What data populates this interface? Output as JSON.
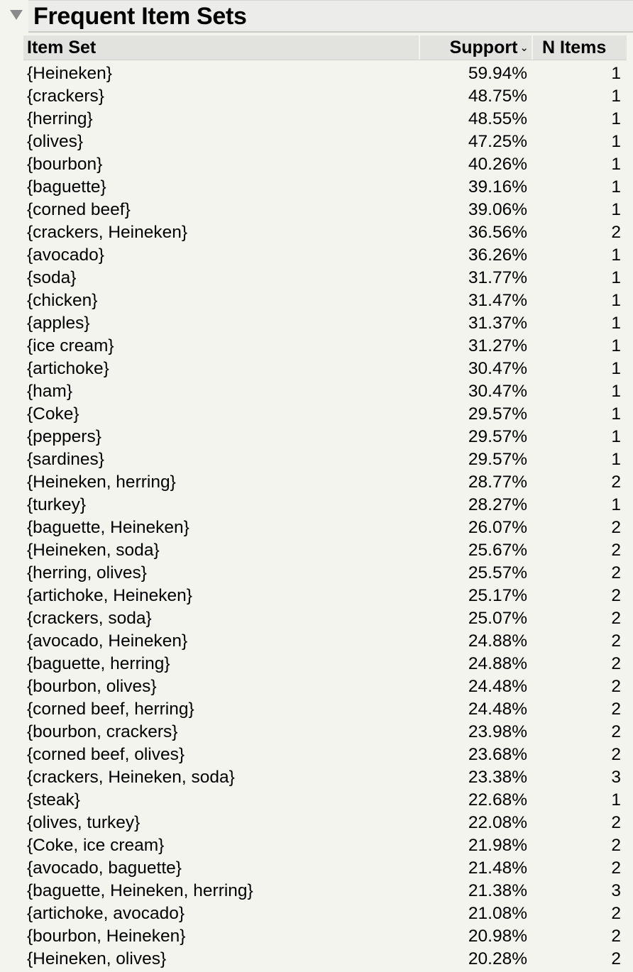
{
  "report": {
    "title": "Frequent Item Sets"
  },
  "table": {
    "columns": {
      "item_set": "Item Set",
      "support": "Support",
      "n_items": "N Items"
    },
    "sort": {
      "column": "support",
      "direction": "descending",
      "icon": "chevron-down-icon"
    },
    "rows": [
      {
        "item_set": "{Heineken}",
        "support": "59.94%",
        "n_items": "1"
      },
      {
        "item_set": "{crackers}",
        "support": "48.75%",
        "n_items": "1"
      },
      {
        "item_set": "{herring}",
        "support": "48.55%",
        "n_items": "1"
      },
      {
        "item_set": "{olives}",
        "support": "47.25%",
        "n_items": "1"
      },
      {
        "item_set": "{bourbon}",
        "support": "40.26%",
        "n_items": "1"
      },
      {
        "item_set": "{baguette}",
        "support": "39.16%",
        "n_items": "1"
      },
      {
        "item_set": "{corned beef}",
        "support": "39.06%",
        "n_items": "1"
      },
      {
        "item_set": "{crackers, Heineken}",
        "support": "36.56%",
        "n_items": "2"
      },
      {
        "item_set": "{avocado}",
        "support": "36.26%",
        "n_items": "1"
      },
      {
        "item_set": "{soda}",
        "support": "31.77%",
        "n_items": "1"
      },
      {
        "item_set": "{chicken}",
        "support": "31.47%",
        "n_items": "1"
      },
      {
        "item_set": "{apples}",
        "support": "31.37%",
        "n_items": "1"
      },
      {
        "item_set": "{ice cream}",
        "support": "31.27%",
        "n_items": "1"
      },
      {
        "item_set": "{artichoke}",
        "support": "30.47%",
        "n_items": "1"
      },
      {
        "item_set": "{ham}",
        "support": "30.47%",
        "n_items": "1"
      },
      {
        "item_set": "{Coke}",
        "support": "29.57%",
        "n_items": "1"
      },
      {
        "item_set": "{peppers}",
        "support": "29.57%",
        "n_items": "1"
      },
      {
        "item_set": "{sardines}",
        "support": "29.57%",
        "n_items": "1"
      },
      {
        "item_set": "{Heineken, herring}",
        "support": "28.77%",
        "n_items": "2"
      },
      {
        "item_set": "{turkey}",
        "support": "28.27%",
        "n_items": "1"
      },
      {
        "item_set": "{baguette, Heineken}",
        "support": "26.07%",
        "n_items": "2"
      },
      {
        "item_set": "{Heineken, soda}",
        "support": "25.67%",
        "n_items": "2"
      },
      {
        "item_set": "{herring, olives}",
        "support": "25.57%",
        "n_items": "2"
      },
      {
        "item_set": "{artichoke, Heineken}",
        "support": "25.17%",
        "n_items": "2"
      },
      {
        "item_set": "{crackers, soda}",
        "support": "25.07%",
        "n_items": "2"
      },
      {
        "item_set": "{avocado, Heineken}",
        "support": "24.88%",
        "n_items": "2"
      },
      {
        "item_set": "{baguette, herring}",
        "support": "24.88%",
        "n_items": "2"
      },
      {
        "item_set": "{bourbon, olives}",
        "support": "24.48%",
        "n_items": "2"
      },
      {
        "item_set": "{corned beef, herring}",
        "support": "24.48%",
        "n_items": "2"
      },
      {
        "item_set": "{bourbon, crackers}",
        "support": "23.98%",
        "n_items": "2"
      },
      {
        "item_set": "{corned beef, olives}",
        "support": "23.68%",
        "n_items": "2"
      },
      {
        "item_set": "{crackers, Heineken, soda}",
        "support": "23.38%",
        "n_items": "3"
      },
      {
        "item_set": "{steak}",
        "support": "22.68%",
        "n_items": "1"
      },
      {
        "item_set": "{olives, turkey}",
        "support": "22.08%",
        "n_items": "2"
      },
      {
        "item_set": "{Coke, ice cream}",
        "support": "21.98%",
        "n_items": "2"
      },
      {
        "item_set": "{avocado, baguette}",
        "support": "21.48%",
        "n_items": "2"
      },
      {
        "item_set": "{baguette, Heineken, herring}",
        "support": "21.38%",
        "n_items": "3"
      },
      {
        "item_set": "{artichoke, avocado}",
        "support": "21.08%",
        "n_items": "2"
      },
      {
        "item_set": "{bourbon, Heineken}",
        "support": "20.98%",
        "n_items": "2"
      },
      {
        "item_set": "{Heineken, olives}",
        "support": "20.28%",
        "n_items": "2"
      }
    ]
  }
}
